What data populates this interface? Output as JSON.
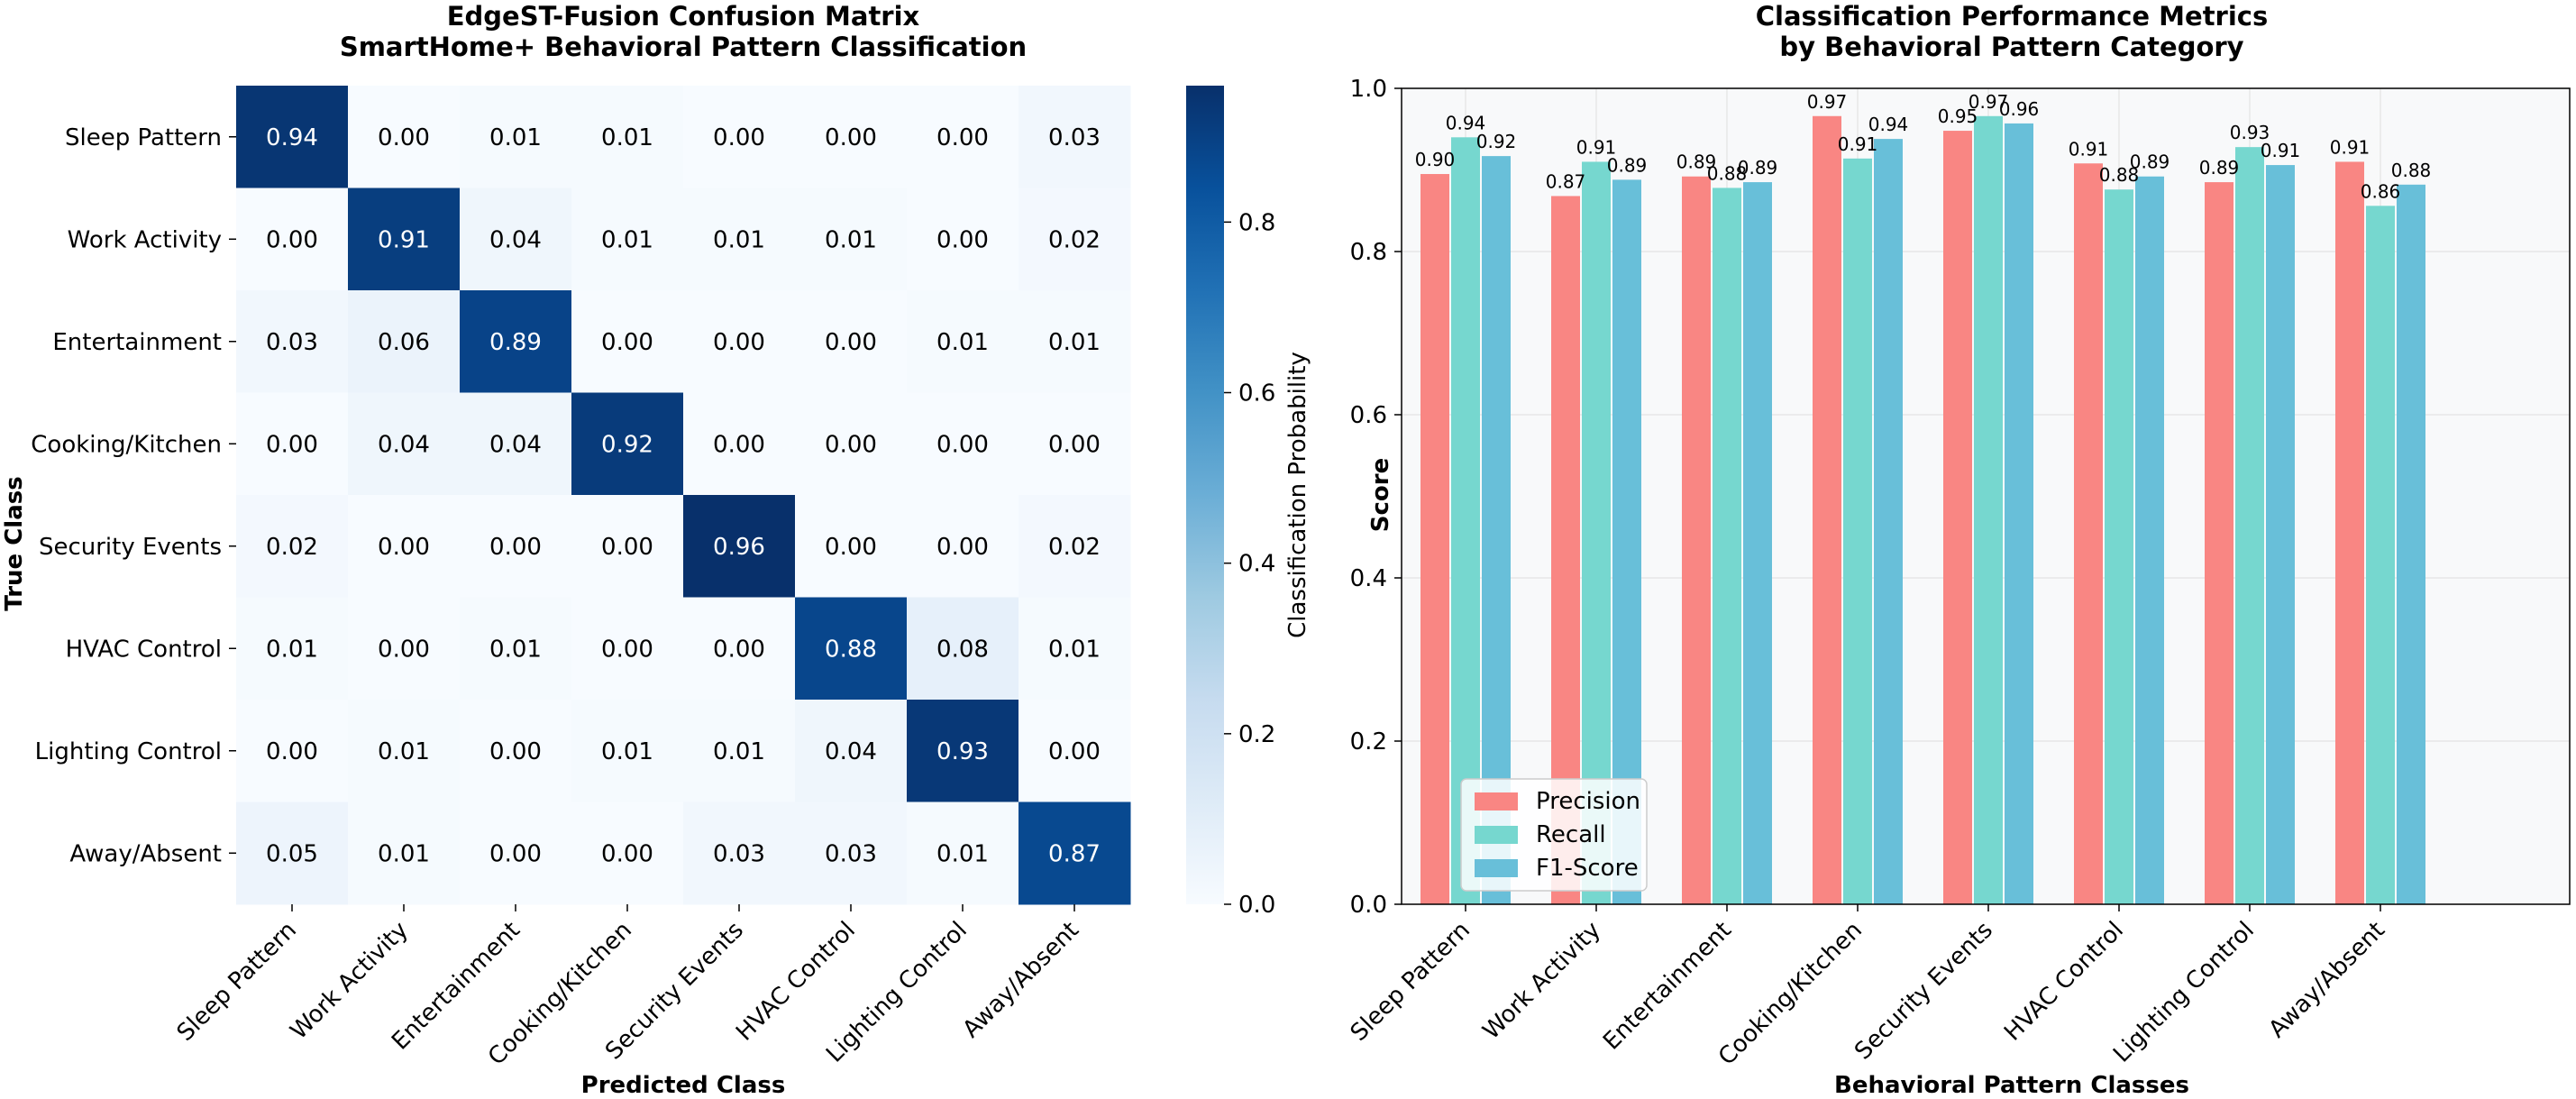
{
  "colors": {
    "precision": "#f98683",
    "recall": "#76d7cf",
    "f1": "#68bfd9",
    "heat_low": "#f7fbff",
    "heat_high": "#08306b"
  },
  "chart_data": [
    {
      "type": "heatmap",
      "title_line1": "EdgeST-Fusion Confusion Matrix",
      "title_line2": "SmartHome+ Behavioral Pattern Classification",
      "xlabel": "Predicted Class",
      "ylabel": "True Class",
      "classes": [
        "Sleep Pattern",
        "Work Activity",
        "Entertainment",
        "Cooking/Kitchen",
        "Security Events",
        "HVAC Control",
        "Lighting Control",
        "Away/Absent"
      ],
      "matrix": [
        [
          0.94,
          0.0,
          0.01,
          0.01,
          0.0,
          0.0,
          0.0,
          0.03
        ],
        [
          0.0,
          0.91,
          0.04,
          0.01,
          0.01,
          0.01,
          0.0,
          0.02
        ],
        [
          0.03,
          0.06,
          0.89,
          0.0,
          0.0,
          0.0,
          0.01,
          0.01
        ],
        [
          0.0,
          0.04,
          0.04,
          0.92,
          0.0,
          0.0,
          0.0,
          0.0
        ],
        [
          0.02,
          0.0,
          0.0,
          0.0,
          0.96,
          0.0,
          0.0,
          0.02
        ],
        [
          0.01,
          0.0,
          0.01,
          0.0,
          0.0,
          0.88,
          0.08,
          0.01
        ],
        [
          0.0,
          0.01,
          0.0,
          0.01,
          0.01,
          0.04,
          0.93,
          0.0
        ],
        [
          0.05,
          0.01,
          0.0,
          0.0,
          0.03,
          0.03,
          0.01,
          0.87
        ]
      ],
      "colorbar": {
        "label": "Classification Probability",
        "range": [
          0.0,
          0.96
        ],
        "ticks": [
          "0.0",
          "0.2",
          "0.4",
          "0.6",
          "0.8"
        ]
      }
    },
    {
      "type": "bar",
      "title_line1": "Classification Performance Metrics",
      "title_line2": "by Behavioral Pattern Category",
      "xlabel": "Behavioral Pattern Classes",
      "ylabel": "Score",
      "ylim": [
        0,
        1.0
      ],
      "yticks": [
        "0.0",
        "0.2",
        "0.4",
        "0.6",
        "0.8",
        "1.0"
      ],
      "grid": true,
      "legend_position": "lower-left",
      "categories": [
        "Sleep Pattern",
        "Work Activity",
        "Entertainment",
        "Cooking/Kitchen",
        "Security Events",
        "HVAC Control",
        "Lighting Control",
        "Away/Absent"
      ],
      "series": [
        {
          "name": "Precision",
          "values": [
            0.895,
            0.868,
            0.892,
            0.966,
            0.948,
            0.908,
            0.885,
            0.91
          ],
          "labels": [
            "0.90",
            "0.87",
            "0.89",
            "0.97",
            "0.95",
            "0.91",
            "0.89",
            "0.91"
          ]
        },
        {
          "name": "Recall",
          "values": [
            0.94,
            0.91,
            0.878,
            0.914,
            0.966,
            0.876,
            0.928,
            0.856
          ],
          "labels": [
            "0.94",
            "0.91",
            "0.88",
            "0.91",
            "0.97",
            "0.88",
            "0.93",
            "0.86"
          ]
        },
        {
          "name": "F1-Score",
          "values": [
            0.917,
            0.888,
            0.885,
            0.938,
            0.957,
            0.892,
            0.906,
            0.882
          ],
          "labels": [
            "0.92",
            "0.89",
            "0.89",
            "0.94",
            "0.96",
            "0.89",
            "0.91",
            "0.88"
          ]
        }
      ]
    }
  ]
}
